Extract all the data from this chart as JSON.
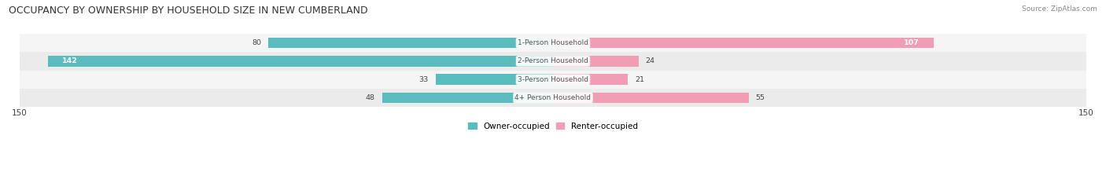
{
  "title": "OCCUPANCY BY OWNERSHIP BY HOUSEHOLD SIZE IN NEW CUMBERLAND",
  "source": "Source: ZipAtlas.com",
  "categories": [
    "1-Person Household",
    "2-Person Household",
    "3-Person Household",
    "4+ Person Household"
  ],
  "owner_values": [
    80,
    142,
    33,
    48
  ],
  "renter_values": [
    107,
    24,
    21,
    55
  ],
  "owner_color": "#5bbcbd",
  "renter_color": "#f09db5",
  "axis_max": 150,
  "row_bg_light": "#f5f5f5",
  "row_bg_dark": "#ebebeb",
  "legend_owner": "Owner-occupied",
  "legend_renter": "Renter-occupied",
  "title_fontsize": 9,
  "label_fontsize": 7.5,
  "bar_height": 0.58
}
